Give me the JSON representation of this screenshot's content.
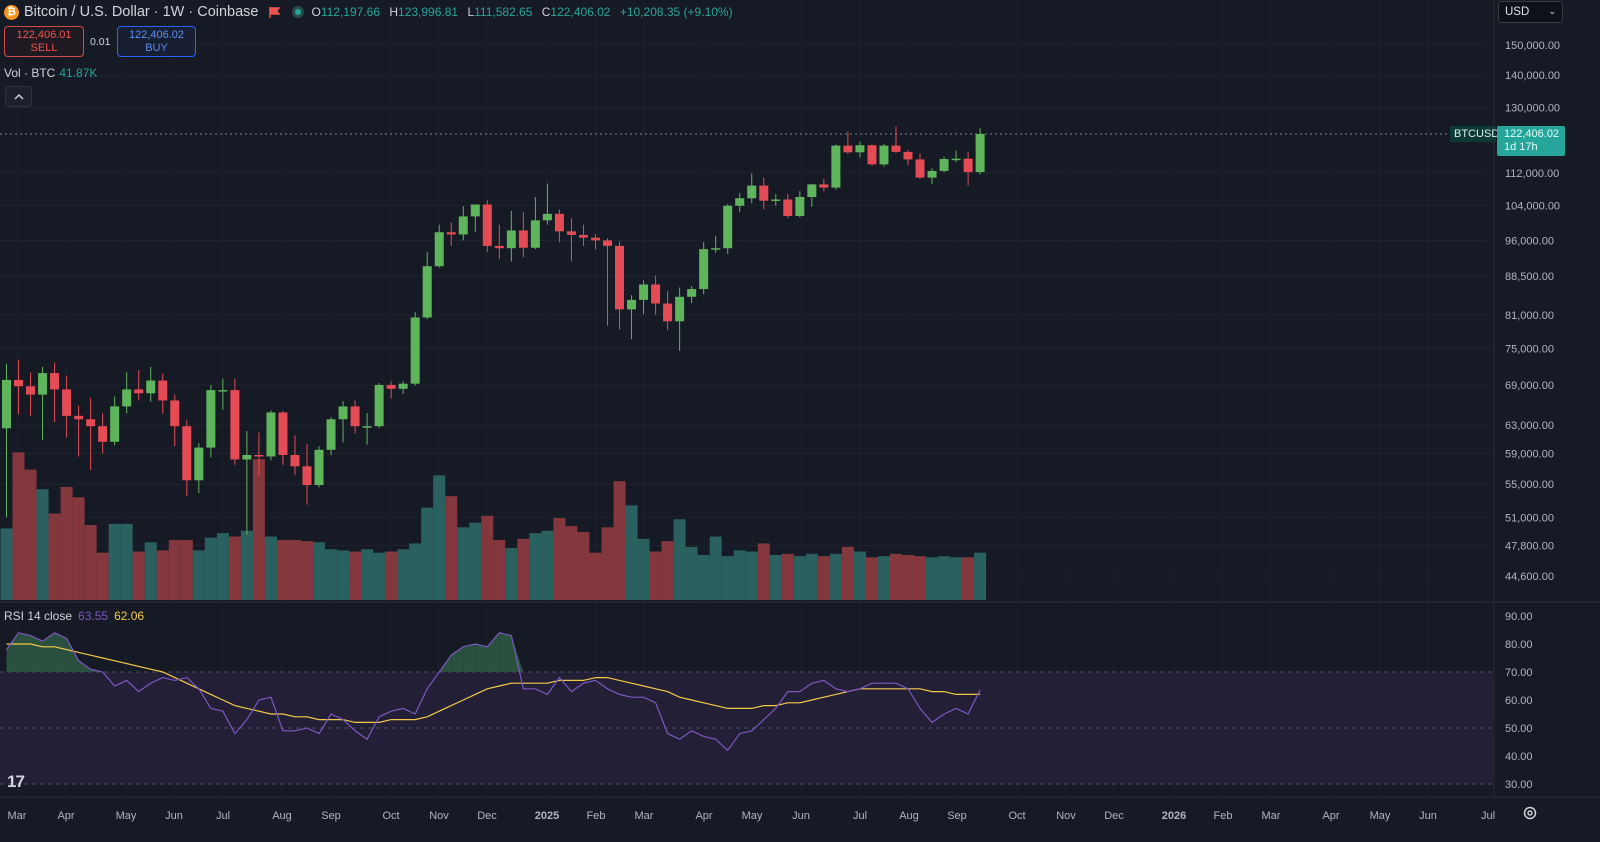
{
  "header": {
    "symbol_icon": "bitcoin-icon",
    "title": "Bitcoin / U.S. Dollar · 1W · Coinbase",
    "open_label": "O",
    "open": "112,197.66",
    "high_label": "H",
    "high": "123,996.81",
    "low_label": "L",
    "low": "111,582.65",
    "close_label": "C",
    "close": "122,406.02",
    "change": "+10,208.35 (+9.10%)"
  },
  "trade": {
    "sell_price": "122,406.01",
    "sell_label": "SELL",
    "spread": "0.01",
    "buy_price": "122,406.02",
    "buy_label": "BUY"
  },
  "volume_legend": {
    "label": "Vol · BTC",
    "value": "41.87K"
  },
  "currency": {
    "label": "USD"
  },
  "rsi_legend": {
    "label": "RSI 14 close",
    "rsi": "63.55",
    "ma": "62.06"
  },
  "price_tag": {
    "symbol": "BTCUSD",
    "price": "122,406.02",
    "countdown": "1d 17h"
  },
  "colors": {
    "up": "#26a69a",
    "down": "#ef5350",
    "candle_up": "#5fb55b",
    "candle_down": "#e54b54",
    "rsi": "#7e57c2",
    "rsi_ma": "#f7c948",
    "background": "#161a25"
  },
  "chart_data": [
    {
      "type": "candlestick",
      "x_tick_labels": [
        "Mar",
        "Apr",
        "May",
        "Jun",
        "Jul",
        "Aug",
        "Sep",
        "Oct",
        "Nov",
        "Dec",
        "2025",
        "Feb",
        "Mar",
        "Apr",
        "May",
        "Jun",
        "Jul",
        "Aug",
        "Sep",
        "Oct",
        "Nov",
        "Dec",
        "2026",
        "Feb",
        "Mar",
        "Apr",
        "May",
        "Jun",
        "Jul"
      ],
      "y_tick_labels": [
        "150,000.00",
        "140,000.00",
        "130,000.00",
        "112,000.00",
        "104,000.00",
        "96,000.00",
        "88,500.00",
        "81,000.00",
        "75,000.00",
        "69,000.00",
        "63,000.00",
        "59,000.00",
        "55,000.00",
        "51,000.00",
        "47,800.00",
        "44,600.00"
      ],
      "y_ticks": [
        150000,
        140000,
        130000,
        112000,
        104000,
        96000,
        88500,
        81000,
        75000,
        69000,
        63000,
        59000,
        55000,
        51000,
        47800,
        44600
      ],
      "scale": "log",
      "ylim": [
        41800,
        158000
      ],
      "last_price": 122406.02,
      "candles": [
        [
          62500,
          72400,
          51000,
          69800
        ],
        [
          69800,
          73100,
          64500,
          68800
        ],
        [
          68800,
          71000,
          64300,
          67500
        ],
        [
          67500,
          71900,
          60800,
          70900
        ],
        [
          70900,
          72600,
          63400,
          68300
        ],
        [
          68300,
          70500,
          61200,
          64300
        ],
        [
          64300,
          65800,
          58600,
          63800
        ],
        [
          63800,
          67000,
          56800,
          62800
        ],
        [
          62800,
          64700,
          59000,
          60600
        ],
        [
          60600,
          67200,
          60100,
          65700
        ],
        [
          65700,
          71000,
          64700,
          68300
        ],
        [
          68300,
          71400,
          66600,
          67700
        ],
        [
          67700,
          71900,
          66400,
          69700
        ],
        [
          69700,
          70800,
          64600,
          66600
        ],
        [
          66600,
          67500,
          60000,
          62800
        ],
        [
          62800,
          63700,
          53500,
          55500
        ],
        [
          55500,
          60400,
          53900,
          59800
        ],
        [
          59800,
          69000,
          58500,
          68200
        ],
        [
          68200,
          70000,
          65200,
          68200
        ],
        [
          68200,
          70000,
          57500,
          58200
        ],
        [
          58200,
          62100,
          49000,
          58800
        ],
        [
          58800,
          61900,
          56100,
          58600
        ],
        [
          58600,
          65100,
          58100,
          64800
        ],
        [
          64800,
          65000,
          57500,
          58800
        ],
        [
          58800,
          61500,
          56200,
          57300
        ],
        [
          57300,
          60300,
          52500,
          54900
        ],
        [
          54900,
          60000,
          54600,
          59500
        ],
        [
          59500,
          64100,
          58800,
          63800
        ],
        [
          63800,
          66500,
          60500,
          65700
        ],
        [
          65700,
          66600,
          61800,
          62800
        ],
        [
          62800,
          64700,
          60200,
          62800
        ],
        [
          62800,
          69300,
          62500,
          69000
        ],
        [
          69000,
          69600,
          66900,
          68400
        ],
        [
          68400,
          69600,
          67600,
          69200
        ],
        [
          69200,
          81500,
          68900,
          80500
        ],
        [
          80500,
          93500,
          80200,
          90500
        ],
        [
          90500,
          99500,
          90200,
          97800
        ],
        [
          97800,
          100000,
          94800,
          97300
        ],
        [
          97300,
          103800,
          96000,
          101400
        ],
        [
          101400,
          104100,
          97800,
          104200
        ],
        [
          104200,
          105200,
          93500,
          94800
        ],
        [
          94800,
          99500,
          92000,
          94300
        ],
        [
          94300,
          102700,
          91500,
          98200
        ],
        [
          98200,
          102500,
          92400,
          94400
        ],
        [
          94400,
          106000,
          94100,
          100500
        ],
        [
          100500,
          109300,
          99500,
          102000
        ],
        [
          102000,
          103000,
          95600,
          98000
        ],
        [
          98000,
          101000,
          91500,
          97200
        ],
        [
          97200,
          99500,
          94800,
          96600
        ],
        [
          96600,
          97400,
          94000,
          96000
        ],
        [
          96000,
          96500,
          79000,
          94800
        ],
        [
          94800,
          95800,
          78300,
          82000
        ],
        [
          82000,
          84700,
          76600,
          83800
        ],
        [
          83800,
          87600,
          81100,
          86800
        ],
        [
          86800,
          88600,
          81000,
          83100
        ],
        [
          83100,
          85500,
          78200,
          79800
        ],
        [
          79800,
          86200,
          74600,
          84400
        ],
        [
          84400,
          86500,
          83200,
          85900
        ],
        [
          85900,
          95600,
          84900,
          94100
        ],
        [
          94100,
          97000,
          93300,
          94300
        ],
        [
          94300,
          104300,
          93100,
          103900
        ],
        [
          103900,
          107000,
          102400,
          105700
        ],
        [
          105700,
          111900,
          104500,
          108800
        ],
        [
          108800,
          110800,
          103100,
          105100
        ],
        [
          105100,
          106700,
          103900,
          105400
        ],
        [
          105400,
          106800,
          101000,
          101500
        ],
        [
          101500,
          107400,
          101200,
          106000
        ],
        [
          106000,
          109200,
          103700,
          109100
        ],
        [
          109100,
          110500,
          107400,
          108300
        ],
        [
          108300,
          119500,
          107800,
          119200
        ],
        [
          119200,
          123200,
          117000,
          117400
        ],
        [
          117400,
          120300,
          116000,
          119300
        ],
        [
          119300,
          119500,
          113800,
          114200
        ],
        [
          114200,
          119700,
          113600,
          119200
        ],
        [
          119200,
          124500,
          117200,
          117500
        ],
        [
          117500,
          118000,
          114000,
          115500
        ],
        [
          115500,
          117100,
          110500,
          110800
        ],
        [
          110800,
          113200,
          109200,
          112500
        ],
        [
          112500,
          116200,
          112100,
          115600
        ],
        [
          115600,
          117800,
          114800,
          115700
        ],
        [
          115700,
          117600,
          108800,
          112200
        ],
        [
          112197.66,
          123996.81,
          111582.65,
          122406.02
        ]
      ],
      "volume_k": [
        62,
        128,
        113,
        96,
        75,
        98,
        89,
        65,
        41,
        66,
        66,
        42,
        50,
        43,
        52,
        52,
        43,
        54,
        58,
        55,
        60,
        122,
        55,
        52,
        52,
        51,
        50,
        44,
        43,
        42,
        44,
        41,
        42,
        44,
        49,
        80,
        108,
        90,
        63,
        67,
        73,
        52,
        45,
        53,
        58,
        60,
        71,
        64,
        59,
        41,
        63,
        103,
        82,
        53,
        42,
        51,
        70,
        46,
        39,
        55,
        38,
        43,
        42,
        49,
        39,
        40,
        38,
        40,
        38,
        40,
        46,
        42,
        37,
        38,
        40,
        39,
        38,
        37,
        38,
        37,
        37,
        41
      ],
      "volume_direction": "up/down colored per candle"
    },
    {
      "type": "line",
      "name": "RSI 14 close",
      "ylim": [
        25,
        95
      ],
      "y_tick_labels": [
        "90.00",
        "80.00",
        "70.00",
        "60.00",
        "50.00",
        "40.00",
        "30.00"
      ],
      "y_ticks": [
        90,
        80,
        70,
        60,
        50,
        40,
        30
      ],
      "levels": [
        70,
        50,
        30
      ],
      "series": [
        {
          "name": "RSI",
          "values": [
            78,
            84,
            83,
            81,
            84,
            82,
            74,
            71,
            70,
            65,
            67,
            63,
            66,
            68,
            67,
            68,
            64,
            57,
            56,
            48,
            53,
            60,
            61,
            49,
            49,
            50,
            48,
            55,
            53,
            49,
            46,
            54,
            56,
            57,
            55,
            64,
            70,
            76,
            79,
            80,
            79,
            84,
            83,
            64,
            64,
            62,
            68,
            63,
            66,
            67,
            64,
            62,
            61,
            61,
            59,
            48,
            46,
            49,
            47,
            46,
            42,
            48,
            49,
            53,
            57,
            63,
            63,
            66,
            67,
            64,
            63,
            64,
            66,
            66,
            66,
            64,
            57,
            52,
            55,
            57,
            55,
            63.55
          ]
        },
        {
          "name": "RSI-based MA",
          "values": [
            80,
            80,
            80,
            79,
            79,
            78,
            77,
            76,
            75,
            74,
            73,
            72,
            71,
            70,
            68,
            66,
            64,
            62,
            60,
            58,
            57,
            56,
            55,
            55,
            54,
            54,
            53,
            53,
            53,
            52,
            52,
            52,
            53,
            53,
            53,
            54,
            56,
            58,
            60,
            62,
            64,
            65,
            66,
            66,
            66,
            66,
            67,
            67,
            67,
            68,
            68,
            67,
            66,
            65,
            64,
            63,
            61,
            60,
            59,
            58,
            57,
            57,
            57,
            58,
            58,
            59,
            59,
            60,
            61,
            62,
            63,
            64,
            64,
            64,
            64,
            64,
            64,
            63,
            63,
            62,
            62,
            62.06
          ]
        }
      ]
    }
  ]
}
